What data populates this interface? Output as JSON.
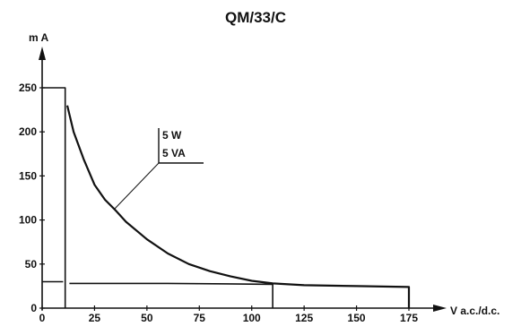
{
  "chart_data": {
    "type": "line",
    "title": "QM/33/C",
    "ylabel": "m A",
    "xlabel": "V a.c./d.c.",
    "xlim": [
      0,
      175
    ],
    "ylim": [
      0,
      250
    ],
    "x_ticks": [
      0,
      25,
      50,
      75,
      100,
      125,
      150,
      175
    ],
    "x_tick_labels": [
      "0",
      "25",
      "50",
      "75",
      "100",
      "125",
      "150",
      "175"
    ],
    "y_ticks": [
      0,
      50,
      100,
      150,
      200,
      250
    ],
    "y_tick_labels": [
      "0",
      "50",
      "100",
      "150",
      "200",
      "250"
    ],
    "annotation": [
      "5 W",
      "5 VA"
    ],
    "grid": false,
    "series": [
      {
        "values_xy": [
          [
            0,
            250
          ],
          [
            11,
            250
          ],
          [
            11,
            0
          ]
        ]
      },
      {
        "values_xy": [
          [
            12,
            230
          ],
          [
            15,
            200
          ],
          [
            20,
            168
          ],
          [
            25,
            140
          ],
          [
            30,
            123
          ],
          [
            35,
            111
          ],
          [
            40,
            98
          ],
          [
            50,
            78
          ],
          [
            60,
            62
          ],
          [
            70,
            50
          ],
          [
            80,
            42
          ],
          [
            90,
            36
          ],
          [
            100,
            31
          ],
          [
            110,
            28
          ],
          [
            125,
            26
          ],
          [
            150,
            25
          ],
          [
            175,
            24
          ],
          [
            175,
            0
          ]
        ]
      },
      {
        "values_xy": [
          [
            0,
            30
          ],
          [
            10,
            30
          ]
        ]
      },
      {
        "values_xy": [
          [
            13,
            28
          ],
          [
            60,
            28
          ],
          [
            110,
            27
          ],
          [
            110,
            0
          ]
        ]
      }
    ]
  }
}
